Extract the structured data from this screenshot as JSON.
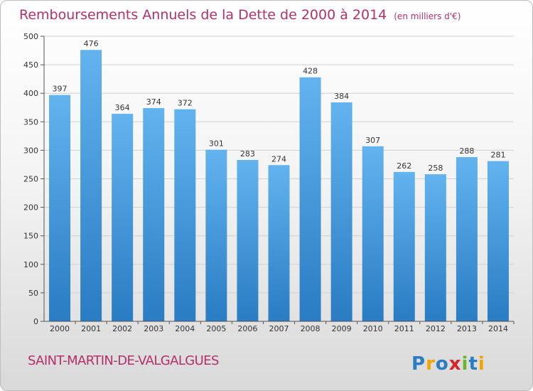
{
  "header": {
    "title": "Remboursements Annuels de la Dette de 2000 à 2014",
    "unit": "(en milliers d'€)"
  },
  "footer": {
    "commune": "SAINT-MARTIN-DE-VALGALGUES",
    "logo_text": "Proxiti"
  },
  "colors": {
    "title": "#b3306a",
    "bar_top": "#62b3ee",
    "bar_bottom": "#2a7cc3",
    "grid": "#d0d0d0"
  },
  "chart_data": {
    "type": "bar",
    "categories": [
      "2000",
      "2001",
      "2002",
      "2003",
      "2004",
      "2005",
      "2006",
      "2007",
      "2008",
      "2009",
      "2010",
      "2011",
      "2012",
      "2013",
      "2014"
    ],
    "values": [
      397,
      476,
      364,
      374,
      372,
      301,
      283,
      274,
      428,
      384,
      307,
      262,
      258,
      288,
      281
    ],
    "title": "Remboursements Annuels de la Dette de 2000 à 2014",
    "ylabel": "",
    "xlabel": "",
    "ylim": [
      0,
      500
    ],
    "yticks": [
      0,
      50,
      100,
      150,
      200,
      250,
      300,
      350,
      400,
      450,
      500
    ],
    "grid": true,
    "data_labels": true
  }
}
